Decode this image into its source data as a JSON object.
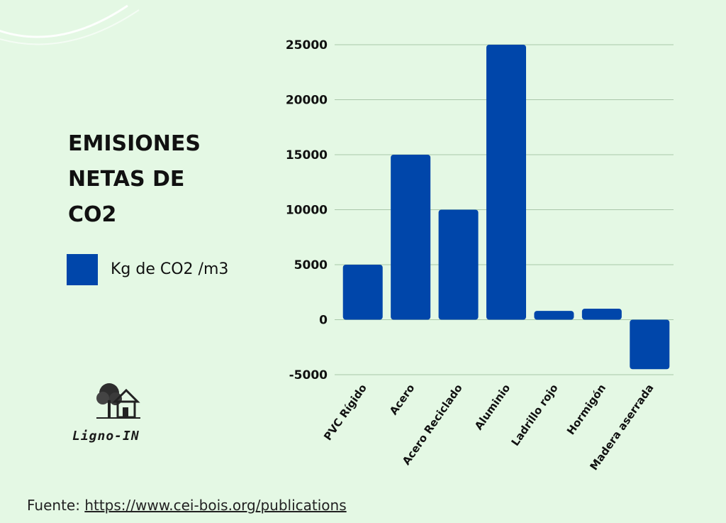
{
  "chart_data": {
    "type": "bar",
    "title": "EMISIONES NETAS DE CO2",
    "categories": [
      "PVC Rígido",
      "Acero",
      "Acero Reciclado",
      "Aluminio",
      "Ladrillo rojo",
      "Hormigón",
      "Madera aserrada"
    ],
    "series": [
      {
        "name": "Kg de CO2 /m3",
        "values": [
          5000,
          15000,
          10000,
          25000,
          800,
          1000,
          -4500
        ]
      }
    ],
    "yticks": [
      25000,
      20000,
      15000,
      10000,
      5000,
      0,
      -5000
    ],
    "ylim": [
      -5000,
      25000
    ],
    "grid": true,
    "legend": "left",
    "colors": {
      "bar": "#0046aa",
      "grid": "#a9c7a9",
      "background": "#e4f8e4"
    }
  },
  "logo": {
    "text": "Ligno-IN",
    "icon": "tree-house-icon"
  },
  "source": {
    "prefix": "Fuente: ",
    "link": "https://www.cei-bois.org/publications"
  }
}
